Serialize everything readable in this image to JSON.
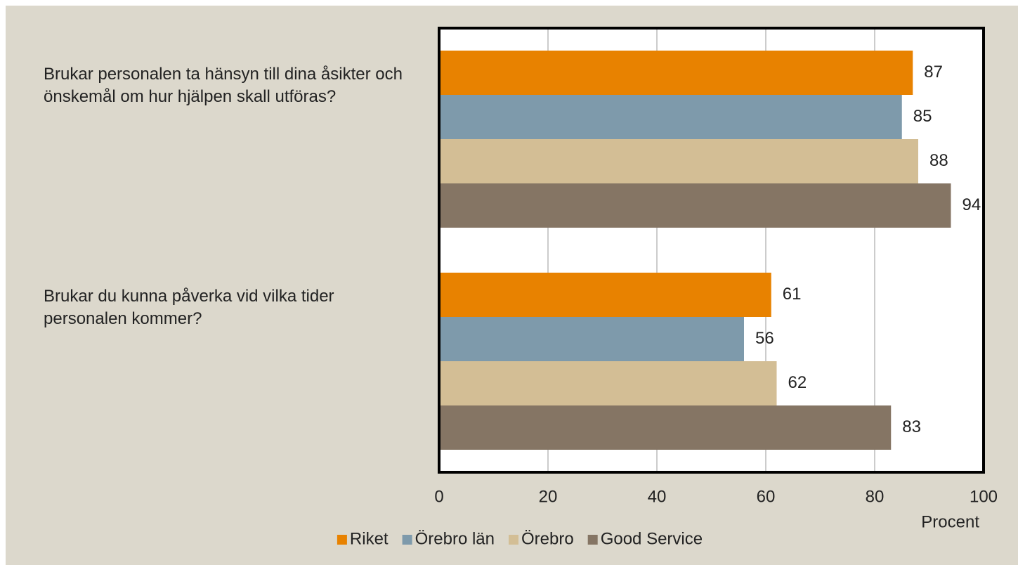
{
  "chart_data": {
    "type": "bar",
    "orientation": "horizontal",
    "categories": [
      "Brukar personalen ta hänsyn till dina åsikter och önskemål om hur hjälpen skall utföras?",
      "Brukar du kunna påverka vid vilka tider personalen kommer?"
    ],
    "series": [
      {
        "name": "Riket",
        "color": "#e88200",
        "values": [
          87,
          61
        ]
      },
      {
        "name": "Örebro län",
        "color": "#7e9aab",
        "values": [
          85,
          56
        ]
      },
      {
        "name": "Örebro",
        "color": "#d3be95",
        "values": [
          88,
          62
        ]
      },
      {
        "name": "Good Service",
        "color": "#857564",
        "values": [
          94,
          83
        ]
      }
    ],
    "xlabel": "Procent",
    "xlim": [
      0,
      100
    ],
    "xticks": [
      0,
      20,
      40,
      60,
      80,
      100
    ],
    "grid": true,
    "legend": "bottom"
  }
}
